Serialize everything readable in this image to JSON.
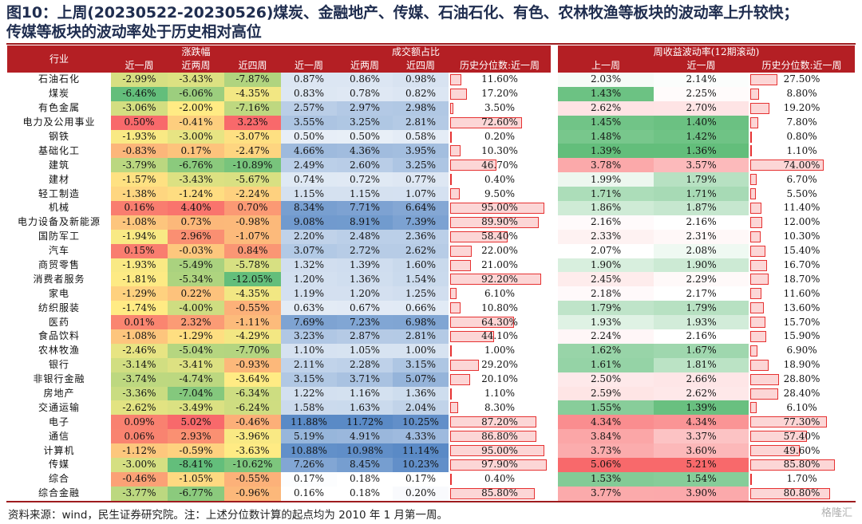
{
  "title_line1": "图10：上周(20230522-20230526)煤炭、金融地产、传媒、石油石化、有色、农林牧渔等板块的波动率上升较快；",
  "title_line2": "传媒等板块的波动率处于历史相对高位",
  "footer": "资料来源：wind，民生证券研究院。注：上述分位数计算的起点均为 2010 年 1 月第一周。",
  "watermark": "格隆汇",
  "chart_data": {
    "type": "table",
    "groups": {
      "industry": "行业",
      "change": "涨跌幅",
      "turnover": "成交额占比",
      "vol": "周收益波动率(12期滚动)"
    },
    "columns": {
      "chg_1w": "近一周",
      "chg_2w": "近两周",
      "chg_4w": "近四周",
      "to_1w": "近一周",
      "to_2w": "近两周",
      "to_4w": "近四周",
      "to_pct": "历史分位数:近一周",
      "vol_prev": "上一周",
      "vol_1w": "近一周",
      "vol_pct": "历史分位数:近一周"
    },
    "rows": [
      {
        "name": "石油石化",
        "chg1": "-2.99%",
        "chg2": "-3.43%",
        "chg4": "-7.87%",
        "to1": "0.87%",
        "to2": "0.86%",
        "to4": "0.98%",
        "topct": "11.60%",
        "volp": "2.03%",
        "vol1": "2.14%",
        "volpct": "27.50%"
      },
      {
        "name": "煤炭",
        "chg1": "-6.46%",
        "chg2": "-6.06%",
        "chg4": "-4.35%",
        "to1": "0.83%",
        "to2": "0.78%",
        "to4": "0.82%",
        "topct": "17.20%",
        "volp": "1.43%",
        "vol1": "2.25%",
        "volpct": "8.80%"
      },
      {
        "name": "有色金属",
        "chg1": "-3.06%",
        "chg2": "-2.00%",
        "chg4": "-7.16%",
        "to1": "2.57%",
        "to2": "2.97%",
        "to4": "2.98%",
        "topct": "3.50%",
        "volp": "2.62%",
        "vol1": "2.70%",
        "volpct": "19.20%"
      },
      {
        "name": "电力及公用事业",
        "chg1": "0.50%",
        "chg2": "-0.41%",
        "chg4": "3.23%",
        "to1": "3.55%",
        "to2": "3.25%",
        "to4": "2.81%",
        "topct": "72.60%",
        "volp": "1.45%",
        "vol1": "1.40%",
        "volpct": "7.80%"
      },
      {
        "name": "钢铁",
        "chg1": "-1.93%",
        "chg2": "-3.00%",
        "chg4": "-3.07%",
        "to1": "0.50%",
        "to2": "0.50%",
        "to4": "0.58%",
        "topct": "0.20%",
        "volp": "1.48%",
        "vol1": "1.42%",
        "volpct": "0.80%"
      },
      {
        "name": "基础化工",
        "chg1": "-0.83%",
        "chg2": "0.17%",
        "chg4": "-2.47%",
        "to1": "4.66%",
        "to2": "4.36%",
        "to4": "3.95%",
        "topct": "10.30%",
        "volp": "1.39%",
        "vol1": "1.36%",
        "volpct": "1.10%"
      },
      {
        "name": "建筑",
        "chg1": "-3.79%",
        "chg2": "-6.76%",
        "chg4": "-10.89%",
        "to1": "2.49%",
        "to2": "2.60%",
        "to4": "3.25%",
        "topct": "46.70%",
        "volp": "3.78%",
        "vol1": "3.57%",
        "volpct": "74.00%"
      },
      {
        "name": "建材",
        "chg1": "-1.57%",
        "chg2": "-3.43%",
        "chg4": "-5.67%",
        "to1": "0.74%",
        "to2": "0.72%",
        "to4": "0.77%",
        "topct": "0.40%",
        "volp": "1.99%",
        "vol1": "1.79%",
        "volpct": "6.70%"
      },
      {
        "name": "轻工制造",
        "chg1": "-1.38%",
        "chg2": "-1.24%",
        "chg4": "-2.24%",
        "to1": "1.15%",
        "to2": "1.15%",
        "to4": "1.07%",
        "topct": "9.50%",
        "volp": "1.71%",
        "vol1": "1.71%",
        "volpct": "5.50%"
      },
      {
        "name": "机械",
        "chg1": "0.16%",
        "chg2": "4.40%",
        "chg4": "0.70%",
        "to1": "8.34%",
        "to2": "7.71%",
        "to4": "6.64%",
        "topct": "95.00%",
        "volp": "1.86%",
        "vol1": "1.87%",
        "volpct": "11.40%"
      },
      {
        "name": "电力设备及新能源",
        "chg1": "-1.08%",
        "chg2": "0.73%",
        "chg4": "-0.98%",
        "to1": "9.08%",
        "to2": "8.91%",
        "to4": "7.39%",
        "topct": "89.90%",
        "volp": "2.16%",
        "vol1": "2.16%",
        "volpct": "12.00%"
      },
      {
        "name": "国防军工",
        "chg1": "-1.94%",
        "chg2": "2.96%",
        "chg4": "-1.07%",
        "to1": "2.20%",
        "to2": "2.48%",
        "to4": "2.36%",
        "topct": "58.40%",
        "volp": "2.33%",
        "vol1": "2.31%",
        "volpct": "10.30%"
      },
      {
        "name": "汽车",
        "chg1": "0.15%",
        "chg2": "-0.03%",
        "chg4": "0.84%",
        "to1": "3.07%",
        "to2": "2.72%",
        "to4": "2.62%",
        "topct": "22.00%",
        "volp": "2.07%",
        "vol1": "2.08%",
        "volpct": "15.40%"
      },
      {
        "name": "商贸零售",
        "chg1": "-1.93%",
        "chg2": "-5.49%",
        "chg4": "-5.78%",
        "to1": "1.32%",
        "to2": "1.39%",
        "to4": "1.60%",
        "topct": "21.00%",
        "volp": "1.90%",
        "vol1": "1.90%",
        "volpct": "16.70%"
      },
      {
        "name": "消费者服务",
        "chg1": "-1.81%",
        "chg2": "-5.34%",
        "chg4": "-12.05%",
        "to1": "1.20%",
        "to2": "1.36%",
        "to4": "1.54%",
        "topct": "92.20%",
        "volp": "2.45%",
        "vol1": "2.29%",
        "volpct": "18.70%"
      },
      {
        "name": "家电",
        "chg1": "-1.29%",
        "chg2": "0.22%",
        "chg4": "-4.35%",
        "to1": "1.19%",
        "to2": "1.20%",
        "to4": "1.25%",
        "topct": "6.10%",
        "volp": "2.18%",
        "vol1": "2.17%",
        "volpct": "11.60%"
      },
      {
        "name": "纺织服装",
        "chg1": "-1.74%",
        "chg2": "-4.00%",
        "chg4": "-0.55%",
        "to1": "0.63%",
        "to2": "0.67%",
        "to4": "0.66%",
        "topct": "10.80%",
        "volp": "1.79%",
        "vol1": "1.79%",
        "volpct": "13.60%"
      },
      {
        "name": "医药",
        "chg1": "0.01%",
        "chg2": "2.32%",
        "chg4": "-1.11%",
        "to1": "7.69%",
        "to2": "7.23%",
        "to4": "6.98%",
        "topct": "64.30%",
        "volp": "1.93%",
        "vol1": "1.93%",
        "volpct": "15.70%"
      },
      {
        "name": "食品饮料",
        "chg1": "-1.08%",
        "chg2": "-1.29%",
        "chg4": "-4.29%",
        "to1": "3.23%",
        "to2": "2.87%",
        "to4": "2.81%",
        "topct": "44.10%",
        "volp": "2.24%",
        "vol1": "2.16%",
        "volpct": "15.90%"
      },
      {
        "name": "农林牧渔",
        "chg1": "-2.46%",
        "chg2": "-5.04%",
        "chg4": "-7.70%",
        "to1": "1.10%",
        "to2": "1.05%",
        "to4": "1.00%",
        "topct": "1.00%",
        "volp": "1.62%",
        "vol1": "1.67%",
        "volpct": "6.90%"
      },
      {
        "name": "银行",
        "chg1": "-3.14%",
        "chg2": "-3.41%",
        "chg4": "-0.93%",
        "to1": "2.11%",
        "to2": "2.28%",
        "to4": "3.15%",
        "topct": "29.20%",
        "volp": "1.61%",
        "vol1": "1.81%",
        "volpct": "18.90%"
      },
      {
        "name": "非银行金融",
        "chg1": "-3.74%",
        "chg2": "-4.74%",
        "chg4": "-3.64%",
        "to1": "3.15%",
        "to2": "3.71%",
        "to4": "5.07%",
        "topct": "20.10%",
        "volp": "2.50%",
        "vol1": "2.66%",
        "volpct": "28.80%"
      },
      {
        "name": "房地产",
        "chg1": "-3.36%",
        "chg2": "-7.04%",
        "chg4": "-6.34%",
        "to1": "1.22%",
        "to2": "1.16%",
        "to4": "1.36%",
        "topct": "1.10%",
        "volp": "2.59%",
        "vol1": "2.62%",
        "volpct": "28.40%"
      },
      {
        "name": "交通运输",
        "chg1": "-2.62%",
        "chg2": "-3.49%",
        "chg4": "-6.24%",
        "to1": "1.58%",
        "to2": "1.63%",
        "to4": "2.04%",
        "topct": "8.30%",
        "volp": "1.55%",
        "vol1": "1.39%",
        "volpct": "6.10%"
      },
      {
        "name": "电子",
        "chg1": "0.09%",
        "chg2": "5.02%",
        "chg4": "-0.46%",
        "to1": "11.88%",
        "to2": "11.72%",
        "to4": "10.25%",
        "topct": "87.20%",
        "volp": "4.34%",
        "vol1": "4.34%",
        "volpct": "77.30%"
      },
      {
        "name": "通信",
        "chg1": "0.06%",
        "chg2": "2.93%",
        "chg4": "-3.96%",
        "to1": "5.19%",
        "to2": "4.91%",
        "to4": "4.33%",
        "topct": "86.80%",
        "volp": "3.84%",
        "vol1": "3.37%",
        "volpct": "57.40%"
      },
      {
        "name": "计算机",
        "chg1": "-1.12%",
        "chg2": "-0.59%",
        "chg4": "-3.63%",
        "to1": "10.88%",
        "to2": "10.98%",
        "to4": "11.14%",
        "topct": "95.00%",
        "volp": "3.73%",
        "vol1": "3.60%",
        "volpct": "49.60%"
      },
      {
        "name": "传媒",
        "chg1": "-3.00%",
        "chg2": "-8.41%",
        "chg4": "-10.62%",
        "to1": "7.26%",
        "to2": "8.45%",
        "to4": "10.23%",
        "topct": "97.90%",
        "volp": "5.06%",
        "vol1": "5.21%",
        "volpct": "85.80%"
      },
      {
        "name": "综合",
        "chg1": "-0.46%",
        "chg2": "-1.05%",
        "chg4": "-0.55%",
        "to1": "0.17%",
        "to2": "0.18%",
        "to4": "0.17%",
        "topct": "0.40%",
        "volp": "1.53%",
        "vol1": "1.54%",
        "volpct": "1.70%"
      },
      {
        "name": "综合金融",
        "chg1": "-3.77%",
        "chg2": "-6.77%",
        "chg4": "-0.96%",
        "to1": "0.16%",
        "to2": "0.18%",
        "to4": "0.20%",
        "topct": "85.80%",
        "volp": "3.77%",
        "vol1": "3.90%",
        "volpct": "80.80%"
      }
    ]
  }
}
